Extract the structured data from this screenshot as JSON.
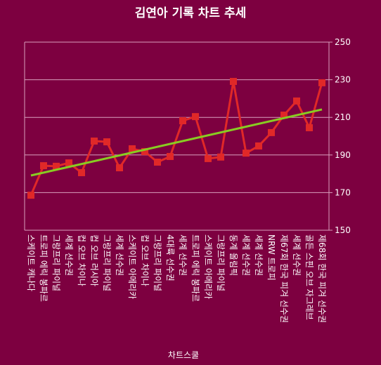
{
  "chart_data": {
    "type": "line",
    "title": "김연아 기록 차트 추세",
    "x_label": "차트스쿨",
    "categories": [
      "스케이트 캐나다",
      "트로피 에릭 봉파르",
      "그랑프리 파이널",
      "세계 선수권",
      "컵 오브 차이나",
      "컵 오브 러시아",
      "그랑프리 파이널",
      "세계 선수권",
      "스케이트 아메리카",
      "컵 오브 차이나",
      "그랑프리 파이널",
      "4대륙 선수권",
      "세계 선수권",
      "트로피 에릭 봉파르",
      "스케이트 아메리카",
      "그랑프리 파이널",
      "동계 올림픽",
      "세계 선수권",
      "세계 선수권",
      "NRW 트로피",
      "제67회 한국 피겨 선수권",
      "세계 선수권",
      "골든 스핀 오브 자그레브",
      "제68회 한국 피겨 선수권"
    ],
    "series": [
      {
        "color": "#e02828",
        "values": [
          168.6,
          184.3,
          184.0,
          185.8,
          180.6,
          197.4,
          197.0,
          183.2,
          193.3,
          191.8,
          186.2,
          189.2,
          208.2,
          210.4,
          188.1,
          188.9,
          229.1,
          191.0,
          194.8,
          201.9,
          211.2,
          218.7,
          204.5,
          228.4
        ]
      }
    ],
    "trendline": {
      "color": "#88cc22",
      "start": 179.1,
      "end": 214.2
    },
    "ylim": [
      150,
      250
    ],
    "yticks": [
      150,
      170,
      190,
      210,
      230,
      250
    ],
    "y_axis_side": "right",
    "grid": true
  }
}
